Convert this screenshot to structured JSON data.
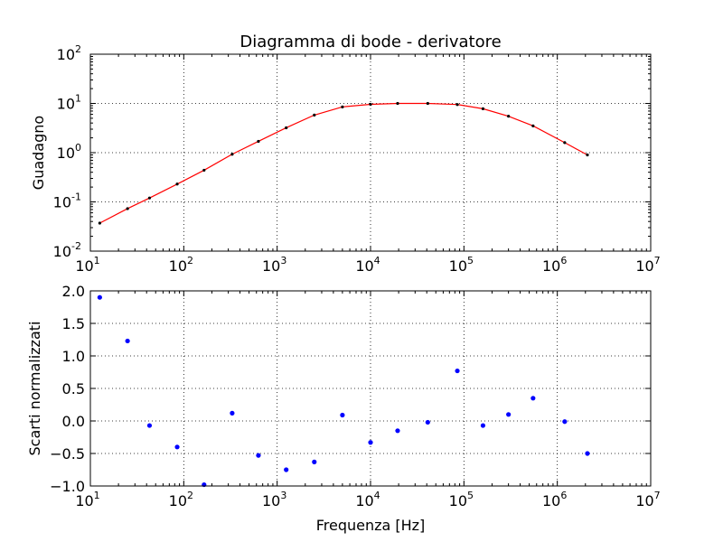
{
  "chart_data": [
    {
      "type": "line",
      "title": "Diagramma di bode - derivatore",
      "xlabel": "",
      "ylabel": "Guadagno",
      "xscale": "log",
      "yscale": "log",
      "xlim": [
        10,
        10000000
      ],
      "ylim": [
        0.01,
        100
      ],
      "grid": true,
      "x_ticks": [
        {
          "base": "10",
          "exp": "1"
        },
        {
          "base": "10",
          "exp": "2"
        },
        {
          "base": "10",
          "exp": "3"
        },
        {
          "base": "10",
          "exp": "4"
        },
        {
          "base": "10",
          "exp": "5"
        },
        {
          "base": "10",
          "exp": "6"
        },
        {
          "base": "10",
          "exp": "7"
        }
      ],
      "y_ticks": [
        {
          "base": "10",
          "exp": "-2"
        },
        {
          "base": "10",
          "exp": "-1"
        },
        {
          "base": "10",
          "exp": "0"
        },
        {
          "base": "10",
          "exp": "1"
        },
        {
          "base": "10",
          "exp": "2"
        }
      ],
      "series": [
        {
          "kind": "points",
          "color": "#000000",
          "x": [
            12.6,
            25,
            43,
            85,
            165,
            330,
            630,
            1250,
            2500,
            5000,
            10000,
            19500,
            41000,
            85000,
            160000,
            300000,
            550000,
            1200000,
            2100000
          ],
          "y": [
            0.037,
            0.073,
            0.12,
            0.23,
            0.44,
            0.93,
            1.7,
            3.2,
            5.8,
            8.5,
            9.6,
            10.0,
            10.0,
            9.5,
            7.8,
            5.5,
            3.5,
            1.6,
            0.9
          ]
        },
        {
          "kind": "fit",
          "color": "#ff0000",
          "x": [
            12.6,
            25,
            43,
            85,
            165,
            330,
            630,
            1250,
            2500,
            5000,
            10000,
            19500,
            41000,
            85000,
            160000,
            300000,
            550000,
            1200000,
            2100000
          ],
          "y": [
            0.037,
            0.073,
            0.12,
            0.23,
            0.44,
            0.93,
            1.7,
            3.2,
            5.8,
            8.5,
            9.6,
            10.0,
            10.0,
            9.5,
            7.8,
            5.5,
            3.5,
            1.6,
            0.9
          ]
        }
      ]
    },
    {
      "type": "scatter",
      "title": "",
      "xlabel": "Frequenza [Hz]",
      "ylabel": "Scarti normalizzati",
      "xscale": "log",
      "xlim": [
        10,
        10000000
      ],
      "ylim": [
        -1.0,
        2.0
      ],
      "grid": true,
      "x_ticks": [
        {
          "base": "10",
          "exp": "1"
        },
        {
          "base": "10",
          "exp": "2"
        },
        {
          "base": "10",
          "exp": "3"
        },
        {
          "base": "10",
          "exp": "4"
        },
        {
          "base": "10",
          "exp": "5"
        },
        {
          "base": "10",
          "exp": "6"
        },
        {
          "base": "10",
          "exp": "7"
        }
      ],
      "y_ticks": [
        "−1.0",
        "−0.5",
        "0.0",
        "0.5",
        "1.0",
        "1.5",
        "2.0"
      ],
      "y_tick_values": [
        -1.0,
        -0.5,
        0.0,
        0.5,
        1.0,
        1.5,
        2.0
      ],
      "series": [
        {
          "color": "#0000ff",
          "x": [
            12.6,
            25,
            43,
            85,
            165,
            330,
            630,
            1250,
            2500,
            5000,
            10000,
            19500,
            41000,
            85000,
            160000,
            300000,
            550000,
            1200000,
            2100000
          ],
          "y": [
            1.9,
            1.23,
            -0.07,
            -0.4,
            -0.98,
            0.12,
            -0.53,
            -0.75,
            -0.63,
            0.09,
            -0.33,
            -0.15,
            -0.02,
            0.77,
            -0.07,
            0.1,
            0.35,
            -0.01,
            -0.5
          ]
        }
      ]
    }
  ]
}
